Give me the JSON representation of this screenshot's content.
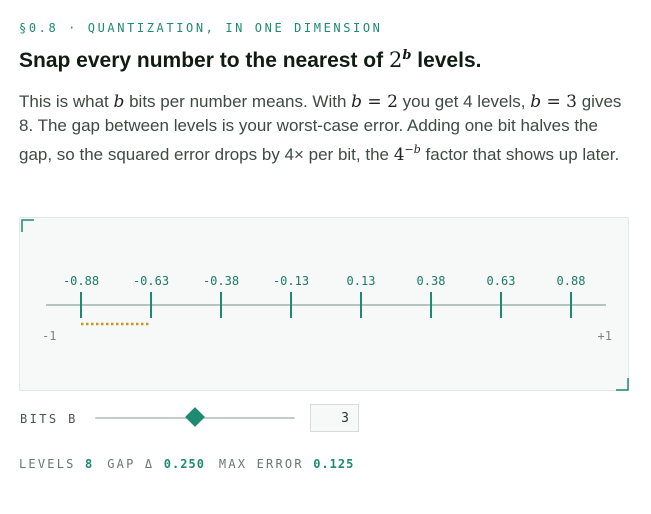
{
  "header": {
    "eyebrow": "§0.8 · QUANTIZATION, IN ONE DIMENSION",
    "title_pre": "Snap every number to the nearest of ",
    "title_base": "2",
    "title_exp": "b",
    "title_post": " levels."
  },
  "body": {
    "t1": "This is what ",
    "m1": "b",
    "t2": " bits per number means. With ",
    "m2": "b",
    "m2eq": " = 2",
    "t3": " you get 4 levels, ",
    "m3": "b",
    "m3eq": " = 3",
    "t4": " gives 8. The gap between levels is your worst-case error. Adding one bit halves the gap, so the squared error drops by 4× per bit, the ",
    "m4base": "4",
    "m4exp": "−b",
    "t5": " factor that shows up later."
  },
  "viz": {
    "min_label": "-1",
    "max_label": "+1",
    "domain": [
      -1,
      1
    ],
    "levels": [
      -0.875,
      -0.625,
      -0.375,
      -0.125,
      0.125,
      0.375,
      0.625,
      0.875
    ],
    "level_labels": [
      "-0.88",
      "-0.63",
      "-0.38",
      "-0.13",
      "0.13",
      "0.38",
      "0.63",
      "0.88"
    ],
    "gap_highlight": {
      "from": -0.875,
      "to": -0.625,
      "color": "#c8961e"
    },
    "accent": "#1e8a72",
    "axis_color": "#8fa59e"
  },
  "controls": {
    "bits_label": "BITS B",
    "bits_value": "3",
    "slider_min": 1,
    "slider_max": 5,
    "slider_value": 3
  },
  "stats": {
    "levels_label": "LEVELS",
    "levels_value": "8",
    "gap_label": "GAP Δ",
    "gap_value": "0.250",
    "max_error_label": "MAX ERROR",
    "max_error_value": "0.125"
  }
}
